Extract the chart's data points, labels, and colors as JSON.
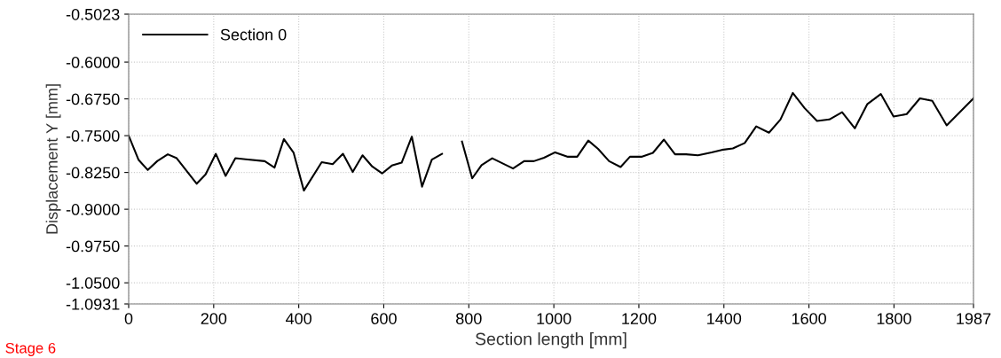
{
  "chart_data": {
    "type": "line",
    "xlabel": "Section length [mm]",
    "ylabel": "Displacement Y [mm]",
    "annotations": [
      "Stage 6"
    ],
    "x": [
      0,
      23,
      45,
      67,
      92,
      113,
      160,
      181,
      205,
      228,
      251,
      275,
      320,
      343,
      365,
      388,
      412,
      454,
      480,
      504,
      527,
      550,
      573,
      596,
      619,
      642,
      666,
      690,
      713,
      737,
      760,
      784,
      808,
      830,
      855,
      904,
      930,
      953,
      977,
      1003,
      1033,
      1055,
      1081,
      1104,
      1130,
      1157,
      1179,
      1206,
      1233,
      1259,
      1285,
      1311,
      1339,
      1371,
      1395,
      1421,
      1449,
      1476,
      1506,
      1533,
      1562,
      1590,
      1619,
      1648,
      1678,
      1708,
      1737,
      1769,
      1799,
      1830,
      1861,
      1890,
      1924,
      1987
    ],
    "series": [
      {
        "name": "Section 0",
        "color": "#000000",
        "values": [
          -0.75,
          -0.799,
          -0.82,
          -0.802,
          -0.788,
          -0.796,
          -0.848,
          -0.829,
          -0.787,
          -0.832,
          -0.796,
          -0.798,
          -0.802,
          -0.815,
          -0.757,
          -0.785,
          -0.862,
          -0.804,
          -0.808,
          -0.787,
          -0.824,
          -0.79,
          -0.813,
          -0.827,
          -0.811,
          -0.805,
          -0.752,
          -0.854,
          -0.799,
          -0.787,
          null,
          -0.762,
          -0.837,
          -0.81,
          -0.796,
          -0.817,
          -0.802,
          -0.802,
          -0.795,
          -0.784,
          -0.793,
          -0.793,
          -0.76,
          -0.777,
          -0.802,
          -0.814,
          -0.793,
          -0.793,
          -0.785,
          -0.758,
          -0.788,
          -0.788,
          -0.79,
          -0.784,
          -0.779,
          -0.776,
          -0.765,
          -0.731,
          -0.744,
          -0.717,
          -0.663,
          -0.694,
          -0.72,
          -0.717,
          -0.702,
          -0.735,
          -0.686,
          -0.665,
          -0.711,
          -0.706,
          -0.674,
          -0.679,
          -0.729,
          -0.674
        ]
      }
    ],
    "xlim": [
      0,
      1987
    ],
    "xticks": [
      0,
      200,
      400,
      600,
      800,
      1000,
      1200,
      1400,
      1600,
      1800,
      1987
    ],
    "ylim": [
      -1.0931,
      -0.5023
    ],
    "yticks": [
      {
        "value": -0.5023,
        "label": "-0.5023"
      },
      {
        "value": -0.6,
        "label": "-0.6000"
      },
      {
        "value": -0.675,
        "label": "-0.6750"
      },
      {
        "value": -0.75,
        "label": "-0.7500"
      },
      {
        "value": -0.825,
        "label": "-0.8250"
      },
      {
        "value": -0.9,
        "label": "-0.9000"
      },
      {
        "value": -0.975,
        "label": "-0.9750"
      },
      {
        "value": -1.05,
        "label": "-1.0500"
      },
      {
        "value": -1.0931,
        "label": "-1.0931"
      }
    ],
    "grid": true,
    "legend": "top left",
    "marker": "none",
    "line_style": "solid"
  }
}
